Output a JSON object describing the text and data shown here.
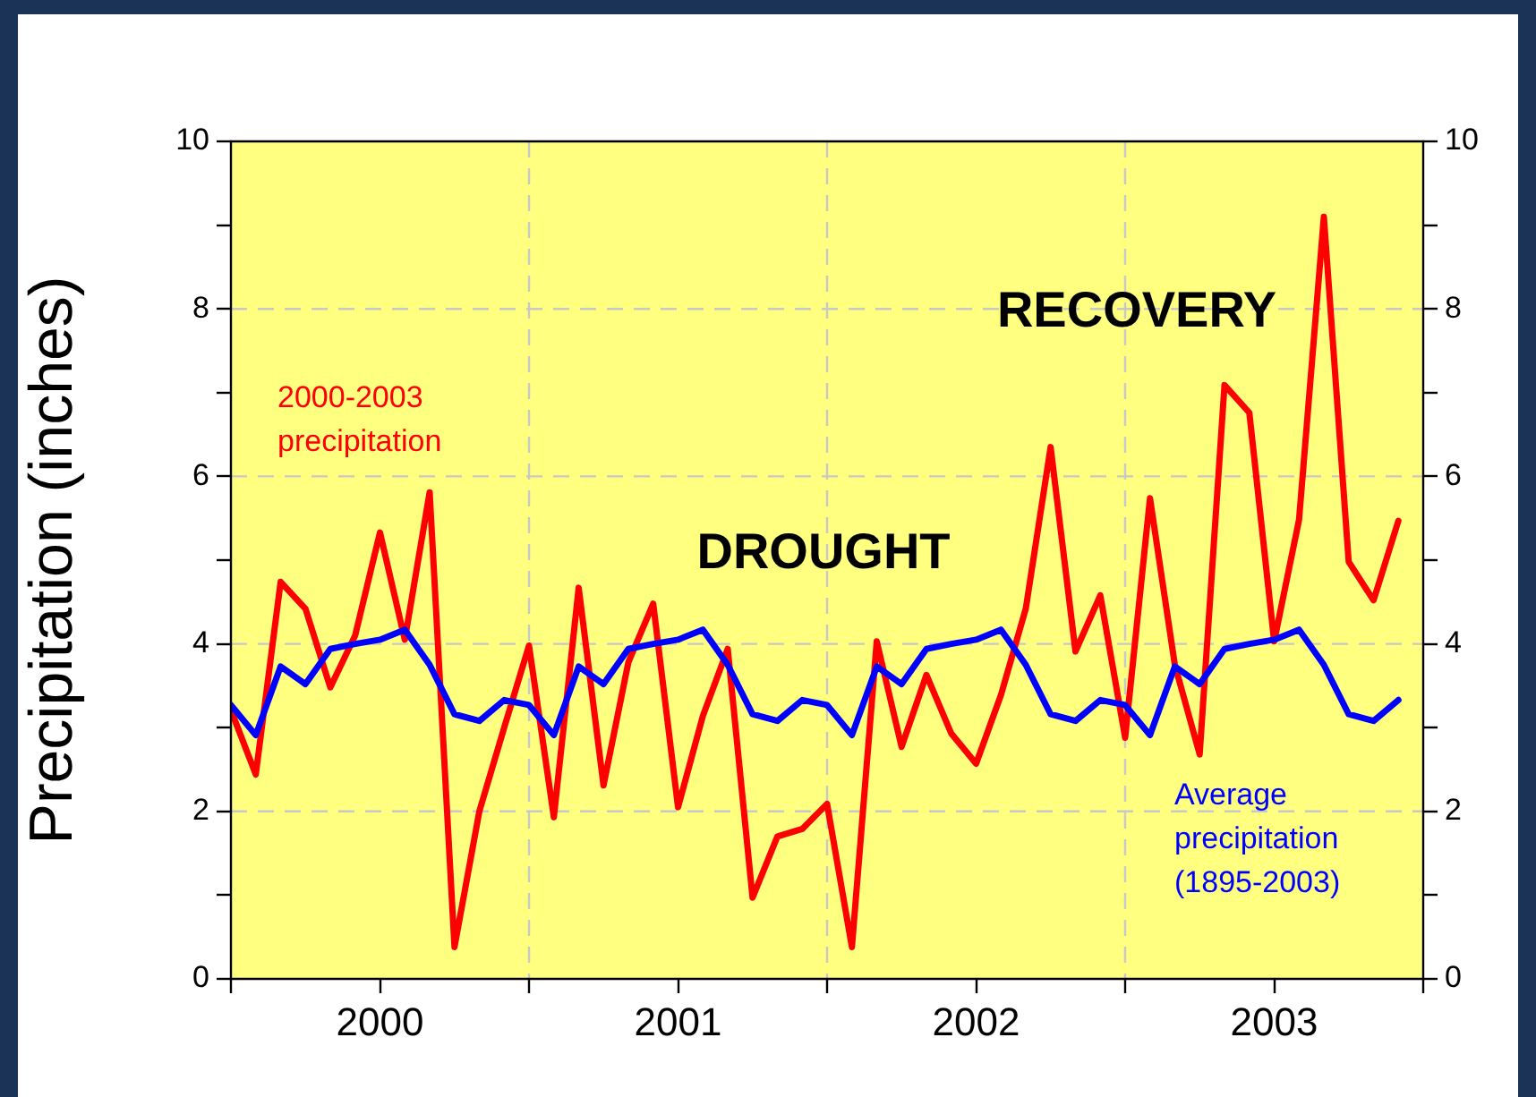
{
  "chart_data": {
    "type": "line",
    "ylabel": "Precipitation (inches)",
    "x": [
      "2000-01",
      "2000-02",
      "2000-03",
      "2000-04",
      "2000-05",
      "2000-06",
      "2000-07",
      "2000-08",
      "2000-09",
      "2000-10",
      "2000-11",
      "2000-12",
      "2001-01",
      "2001-02",
      "2001-03",
      "2001-04",
      "2001-05",
      "2001-06",
      "2001-07",
      "2001-08",
      "2001-09",
      "2001-10",
      "2001-11",
      "2001-12",
      "2002-01",
      "2002-02",
      "2002-03",
      "2002-04",
      "2002-05",
      "2002-06",
      "2002-07",
      "2002-08",
      "2002-09",
      "2002-10",
      "2002-11",
      "2002-12",
      "2003-01",
      "2003-02",
      "2003-03",
      "2003-04",
      "2003-05",
      "2003-06",
      "2003-07",
      "2003-08",
      "2003-09",
      "2003-10",
      "2003-11",
      "2003-12"
    ],
    "series": [
      {
        "name": "Average precipitation (1895-2003)",
        "color": "#0000ff",
        "values": [
          3.27,
          2.91,
          3.73,
          3.52,
          3.94,
          4.0,
          4.05,
          4.17,
          3.75,
          3.16,
          3.08,
          3.33,
          3.27,
          2.91,
          3.73,
          3.52,
          3.94,
          4.0,
          4.05,
          4.17,
          3.75,
          3.16,
          3.08,
          3.33,
          3.27,
          2.91,
          3.73,
          3.52,
          3.94,
          4.0,
          4.05,
          4.17,
          3.75,
          3.16,
          3.08,
          3.33,
          3.27,
          2.91,
          3.73,
          3.52,
          3.94,
          4.0,
          4.05,
          4.17,
          3.75,
          3.16,
          3.08,
          3.33
        ]
      },
      {
        "name": "2000-2003 precipitation",
        "color": "#ff0000",
        "values": [
          3.21,
          2.44,
          4.74,
          4.42,
          3.48,
          4.1,
          5.33,
          4.05,
          5.81,
          0.38,
          2.0,
          3.0,
          3.98,
          1.93,
          4.67,
          2.31,
          3.78,
          4.48,
          2.05,
          3.14,
          3.94,
          0.97,
          1.7,
          1.79,
          2.09,
          0.38,
          4.03,
          2.77,
          3.63,
          2.93,
          2.57,
          3.39,
          4.42,
          6.35,
          3.91,
          4.58,
          2.88,
          5.74,
          3.75,
          2.68,
          7.09,
          6.76,
          4.03,
          5.48,
          9.1,
          4.98,
          4.52,
          5.47
        ]
      }
    ],
    "xlim": [
      "2000-01",
      "2004-01"
    ],
    "xticks": [
      {
        "value": "2000-01",
        "label": null
      },
      {
        "value": "2000-07",
        "label": "2000"
      },
      {
        "value": "2001-01",
        "label": null
      },
      {
        "value": "2001-07",
        "label": "2001"
      },
      {
        "value": "2002-01",
        "label": null
      },
      {
        "value": "2002-07",
        "label": "2002"
      },
      {
        "value": "2003-01",
        "label": null
      },
      {
        "value": "2003-07",
        "label": "2003"
      },
      {
        "value": "2004-01",
        "label": null
      }
    ],
    "ylim": [
      0,
      10
    ],
    "yticks": [
      0,
      {
        "value": 1,
        "label": null
      },
      2,
      {
        "value": 3,
        "label": null
      },
      4,
      {
        "value": 5,
        "label": null
      },
      6,
      {
        "value": 7,
        "label": null
      },
      8,
      {
        "value": 9,
        "label": null
      },
      10
    ],
    "y2lim": [
      0,
      10
    ],
    "y2ticks": [
      0,
      {
        "value": 1,
        "label": null
      },
      2,
      {
        "value": 3,
        "label": null
      },
      4,
      {
        "value": 5,
        "label": null
      },
      6,
      {
        "value": 7,
        "label": null
      },
      8,
      {
        "value": 9,
        "label": null
      },
      10
    ],
    "annotations": [
      "DROUGHT",
      "RECOVERY"
    ],
    "grid": true,
    "legend": false,
    "marker": "none",
    "line_style": "solid"
  }
}
